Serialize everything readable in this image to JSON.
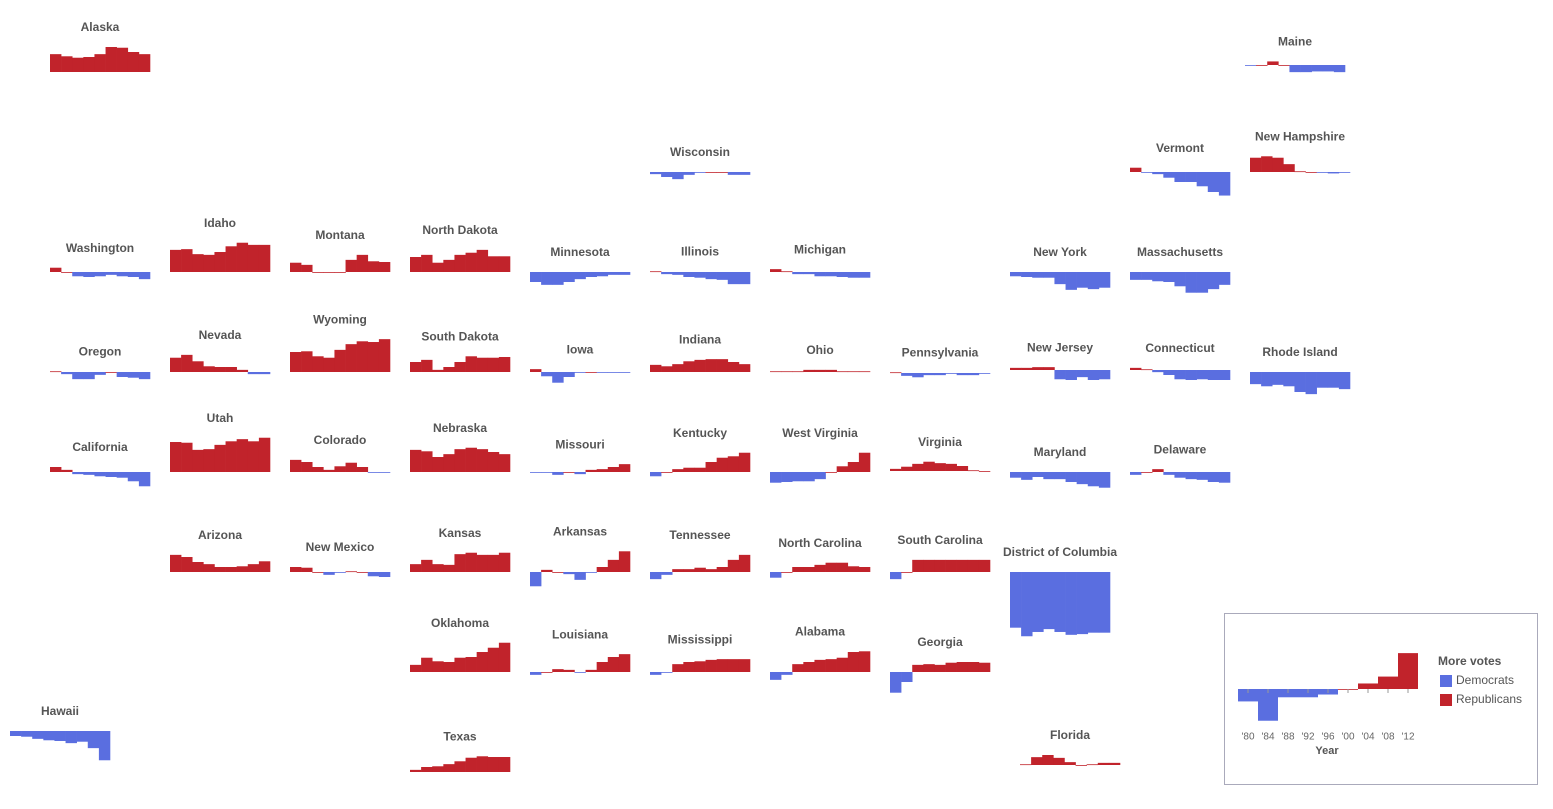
{
  "chart_data": {
    "type": "bar",
    "categories": [
      "'80",
      "'84",
      "'88",
      "'92",
      "'96",
      "'00",
      "'04",
      "'08",
      "'12"
    ],
    "states": [
      {
        "name": "Alaska",
        "values": [
          25,
          22,
          20,
          21,
          25,
          35,
          34,
          28,
          25
        ]
      },
      {
        "name": "Maine",
        "values": [
          -1,
          0,
          5,
          0,
          -10,
          -10,
          -9,
          -9,
          -10
        ]
      },
      {
        "name": "Wisconsin",
        "values": [
          -3,
          -7,
          -10,
          -4,
          -1,
          0,
          0,
          -4,
          -4
        ]
      },
      {
        "name": "Vermont",
        "values": [
          6,
          -1,
          -3,
          -8,
          -14,
          -14,
          -20,
          -28,
          -33
        ]
      },
      {
        "name": "New Hampshire",
        "values": [
          20,
          22,
          20,
          11,
          1,
          0,
          -1,
          -2,
          -1
        ]
      },
      {
        "name": "Washington",
        "values": [
          6,
          0,
          -6,
          -7,
          -6,
          -4,
          -6,
          -7,
          -10
        ]
      },
      {
        "name": "Idaho",
        "values": [
          31,
          32,
          25,
          24,
          28,
          36,
          41,
          38,
          38
        ]
      },
      {
        "name": "Montana",
        "values": [
          13,
          10,
          0,
          0,
          0,
          17,
          24,
          15,
          14
        ]
      },
      {
        "name": "North Dakota",
        "values": [
          21,
          24,
          13,
          17,
          24,
          27,
          31,
          22,
          22
        ]
      },
      {
        "name": "Minnesota",
        "values": [
          -14,
          -18,
          -18,
          -14,
          -10,
          -7,
          -6,
          -4,
          -4
        ]
      },
      {
        "name": "Illinois",
        "values": [
          1,
          -3,
          -4,
          -7,
          -8,
          -10,
          -11,
          -17,
          -17
        ]
      },
      {
        "name": "Michigan",
        "values": [
          4,
          1,
          -3,
          -3,
          -6,
          -6,
          -7,
          -8,
          -8
        ]
      },
      {
        "name": "New York",
        "values": [
          -6,
          -7,
          -8,
          -8,
          -17,
          -25,
          -22,
          -24,
          -22
        ]
      },
      {
        "name": "Massachusetts",
        "values": [
          -11,
          -11,
          -13,
          -14,
          -20,
          -29,
          -29,
          -24,
          -18
        ]
      },
      {
        "name": "Oregon",
        "values": [
          1,
          -3,
          -10,
          -10,
          -4,
          0,
          -7,
          -8,
          -10
        ]
      },
      {
        "name": "Nevada",
        "values": [
          20,
          24,
          15,
          8,
          7,
          7,
          3,
          -3,
          -3
        ]
      },
      {
        "name": "Wyoming",
        "values": [
          28,
          29,
          22,
          20,
          31,
          39,
          43,
          42,
          46
        ]
      },
      {
        "name": "South Dakota",
        "values": [
          14,
          17,
          3,
          7,
          14,
          22,
          20,
          20,
          21
        ]
      },
      {
        "name": "Iowa",
        "values": [
          4,
          -6,
          -15,
          -7,
          -1,
          0,
          -1,
          -1,
          -1
        ]
      },
      {
        "name": "Indiana",
        "values": [
          10,
          8,
          11,
          15,
          17,
          18,
          18,
          14,
          11
        ]
      },
      {
        "name": "Ohio",
        "values": [
          1,
          1,
          1,
          3,
          3,
          3,
          1,
          1,
          1
        ]
      },
      {
        "name": "Pennsylvania",
        "values": [
          1,
          -4,
          -6,
          -3,
          -3,
          -1,
          -3,
          -3,
          -1
        ]
      },
      {
        "name": "New Jersey",
        "values": [
          3,
          3,
          4,
          4,
          -13,
          -14,
          -10,
          -14,
          -13
        ]
      },
      {
        "name": "Connecticut",
        "values": [
          3,
          1,
          -3,
          -7,
          -13,
          -14,
          -13,
          -14,
          -14
        ]
      },
      {
        "name": "Rhode Island",
        "values": [
          -17,
          -20,
          -18,
          -20,
          -28,
          -31,
          -22,
          -22,
          -24
        ]
      },
      {
        "name": "California",
        "values": [
          7,
          3,
          -3,
          -4,
          -6,
          -7,
          -8,
          -13,
          -20
        ]
      },
      {
        "name": "Utah",
        "values": [
          42,
          41,
          31,
          32,
          38,
          43,
          46,
          43,
          48
        ]
      },
      {
        "name": "Colorado",
        "values": [
          17,
          14,
          7,
          3,
          8,
          13,
          7,
          -1,
          -1
        ]
      },
      {
        "name": "Nebraska",
        "values": [
          31,
          29,
          21,
          25,
          32,
          34,
          32,
          28,
          25
        ]
      },
      {
        "name": "Missouri",
        "values": [
          -1,
          -1,
          -4,
          0,
          -3,
          3,
          4,
          7,
          11
        ]
      },
      {
        "name": "Kentucky",
        "values": [
          -6,
          0,
          4,
          6,
          6,
          14,
          20,
          22,
          27
        ]
      },
      {
        "name": "West Virginia",
        "values": [
          -15,
          -14,
          -13,
          -13,
          -10,
          0,
          8,
          14,
          27
        ]
      },
      {
        "name": "Virginia",
        "values": [
          3,
          6,
          10,
          13,
          11,
          10,
          7,
          1,
          0
        ]
      },
      {
        "name": "Maryland",
        "values": [
          -8,
          -11,
          -7,
          -10,
          -10,
          -14,
          -17,
          -20,
          -22
        ]
      },
      {
        "name": "Delaware",
        "values": [
          -4,
          0,
          4,
          -4,
          -8,
          -10,
          -11,
          -14,
          -15
        ]
      },
      {
        "name": "Arizona",
        "values": [
          24,
          21,
          14,
          11,
          7,
          7,
          8,
          11,
          15
        ]
      },
      {
        "name": "New Mexico",
        "values": [
          7,
          6,
          0,
          -4,
          -1,
          1,
          0,
          -6,
          -7
        ]
      },
      {
        "name": "Kansas",
        "values": [
          11,
          17,
          11,
          10,
          25,
          27,
          24,
          24,
          27
        ]
      },
      {
        "name": "Arkansas",
        "values": [
          -20,
          3,
          0,
          -3,
          -11,
          -1,
          7,
          17,
          29
        ]
      },
      {
        "name": "Tennessee",
        "values": [
          -10,
          -4,
          4,
          4,
          6,
          4,
          7,
          17,
          24
        ]
      },
      {
        "name": "North Carolina",
        "values": [
          -8,
          0,
          7,
          7,
          10,
          13,
          13,
          8,
          7
        ]
      },
      {
        "name": "South Carolina",
        "values": [
          -10,
          0,
          17,
          17,
          17,
          17,
          17,
          17,
          17
        ]
      },
      {
        "name": "District of Columbia",
        "values": [
          -78,
          -90,
          -84,
          -80,
          -84,
          -88,
          -87,
          -85,
          -85
        ]
      },
      {
        "name": "Oklahoma",
        "values": [
          10,
          20,
          15,
          14,
          20,
          21,
          28,
          34,
          41
        ]
      },
      {
        "name": "Louisiana",
        "values": [
          -4,
          0,
          4,
          3,
          -1,
          3,
          14,
          21,
          25
        ]
      },
      {
        "name": "Mississippi",
        "values": [
          -4,
          -1,
          11,
          14,
          15,
          17,
          18,
          18,
          18
        ]
      },
      {
        "name": "Alabama",
        "values": [
          -11,
          -4,
          11,
          14,
          17,
          18,
          20,
          28,
          29
        ]
      },
      {
        "name": "Georgia",
        "values": [
          -29,
          -14,
          10,
          11,
          10,
          13,
          14,
          14,
          13
        ]
      },
      {
        "name": "Hawaii",
        "values": [
          -7,
          -8,
          -11,
          -13,
          -14,
          -17,
          -15,
          -24,
          -41
        ]
      },
      {
        "name": "Texas",
        "values": [
          3,
          7,
          8,
          11,
          15,
          20,
          22,
          21,
          21
        ]
      },
      {
        "name": "Florida",
        "values": [
          1,
          11,
          14,
          10,
          4,
          0,
          1,
          3,
          3
        ]
      }
    ],
    "legend": {
      "title": "More votes",
      "xlabel": "Year",
      "series": [
        {
          "name": "Democrats",
          "color": "#5a6ee0"
        },
        {
          "name": "Republicans",
          "color": "#c1232b"
        }
      ],
      "values": [
        -9,
        -23,
        -6,
        -6,
        -4,
        0,
        4,
        9,
        26
      ]
    }
  }
}
